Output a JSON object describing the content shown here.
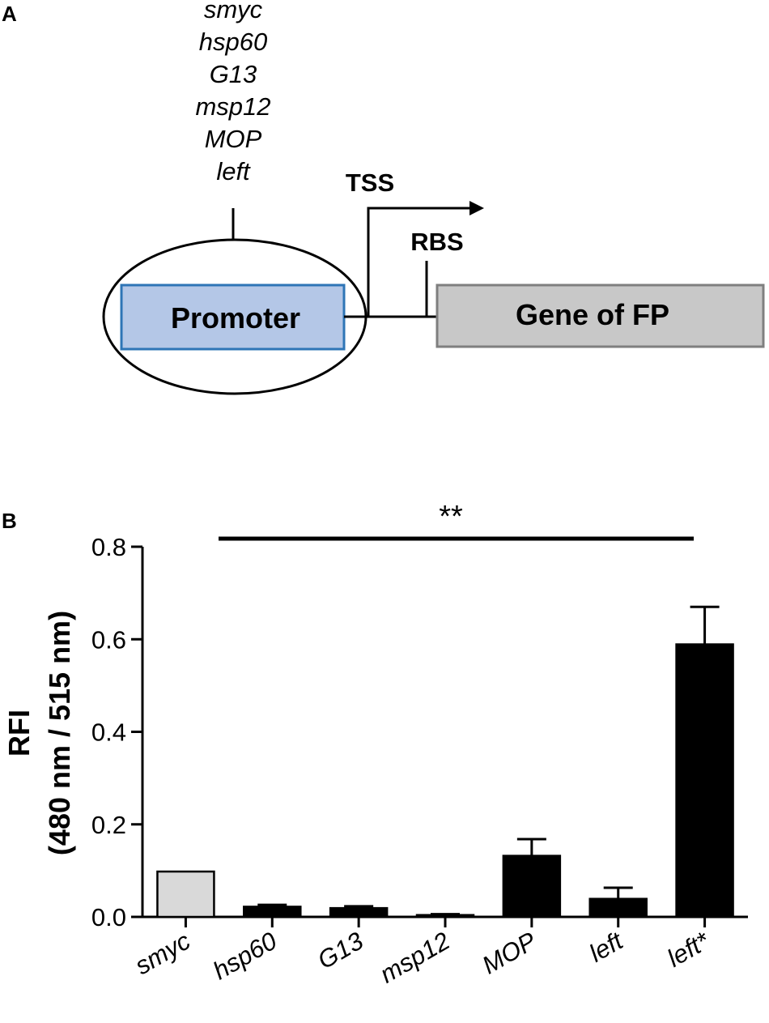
{
  "panel_a": {
    "letter": "A",
    "promoters": [
      "smyc",
      "hsp60",
      "G13",
      "msp12",
      "MOP",
      "left"
    ],
    "tss_label": "TSS",
    "rbs_label": "RBS",
    "promoter_label": "Promoter",
    "gene_label": "Gene of FP",
    "colors": {
      "promoter_fill": "#b4c7e7",
      "promoter_stroke": "#2e75b6",
      "gene_fill": "#c8c8c8",
      "gene_stroke": "#7f7f7f"
    }
  },
  "panel_b": {
    "letter": "B",
    "significance": "**",
    "ylabel_line1": "RFI",
    "ylabel_line2": "(480 nm / 515 nm)"
  },
  "chart_data": {
    "type": "bar",
    "categories": [
      "smyc",
      "hsp60",
      "G13",
      "msp12",
      "MOP",
      "left",
      "left*"
    ],
    "values": [
      0.098,
      0.022,
      0.019,
      0.004,
      0.132,
      0.039,
      0.589
    ],
    "errors": [
      0,
      0.004,
      0.004,
      0.002,
      0.036,
      0.024,
      0.081
    ],
    "bar_colors": [
      "#d9d9d9",
      "#000000",
      "#000000",
      "#000000",
      "#000000",
      "#000000",
      "#000000"
    ],
    "yticks": [
      "0.0",
      "0.2",
      "0.4",
      "0.6",
      "0.8"
    ],
    "ylim": [
      0,
      0.8
    ],
    "grid": false,
    "significance_bracket": {
      "from": "smyc",
      "to": "left*",
      "label": "**"
    }
  }
}
